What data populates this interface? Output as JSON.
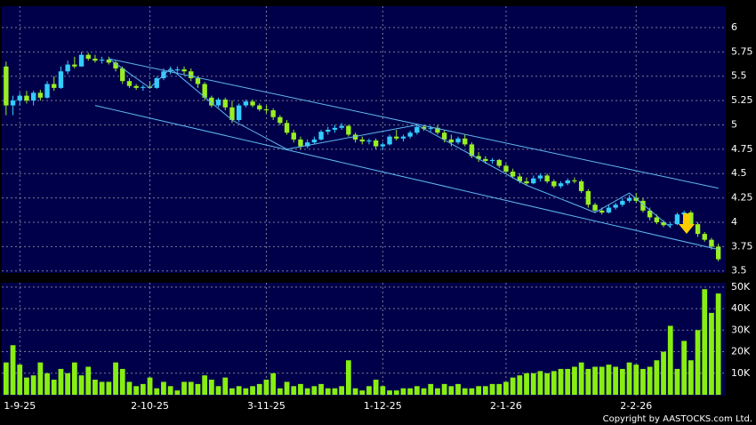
{
  "chart_data": [
    {
      "type": "candlestick",
      "categories": [
        null,
        null,
        "1-9-25",
        null,
        null,
        null,
        null,
        null,
        null,
        null,
        null,
        null,
        null,
        null,
        null,
        null,
        null,
        null,
        null,
        null,
        null,
        "2-10-25",
        null,
        null,
        null,
        null,
        null,
        null,
        null,
        null,
        null,
        null,
        null,
        null,
        null,
        null,
        null,
        null,
        "3-11-25",
        null,
        null,
        null,
        null,
        null,
        null,
        null,
        null,
        null,
        null,
        null,
        null,
        null,
        null,
        null,
        null,
        "1-12-25",
        null,
        null,
        null,
        null,
        null,
        null,
        null,
        null,
        null,
        null,
        null,
        null,
        null,
        null,
        null,
        null,
        null,
        "2-1-26",
        null,
        null,
        null,
        null,
        null,
        null,
        null,
        null,
        null,
        null,
        null,
        null,
        null,
        null,
        null,
        null,
        null,
        null,
        "2-2-26",
        null,
        null,
        null,
        null,
        null,
        null,
        null,
        null,
        null,
        null,
        null,
        null
      ],
      "open": [
        5.6,
        5.2,
        5.25,
        5.3,
        5.25,
        5.33,
        5.28,
        5.42,
        5.38,
        5.55,
        5.62,
        5.6,
        5.72,
        5.68,
        5.66,
        5.67,
        5.64,
        5.58,
        5.45,
        5.4,
        5.38,
        5.39,
        5.38,
        5.48,
        5.55,
        5.56,
        5.57,
        5.55,
        5.48,
        5.42,
        5.28,
        5.2,
        5.26,
        5.18,
        5.05,
        5.2,
        5.24,
        5.2,
        5.16,
        5.15,
        5.08,
        5.02,
        4.92,
        4.85,
        4.78,
        4.82,
        4.85,
        4.93,
        4.95,
        4.97,
        4.99,
        4.9,
        4.85,
        4.83,
        4.84,
        4.78,
        4.8,
        4.88,
        4.86,
        4.88,
        4.92,
        4.98,
        4.96,
        4.97,
        4.92,
        4.85,
        4.82,
        4.86,
        4.8,
        4.68,
        4.65,
        4.63,
        4.64,
        4.58,
        4.52,
        4.47,
        4.42,
        4.4,
        4.45,
        4.48,
        4.42,
        4.37,
        4.4,
        4.43,
        4.42,
        4.32,
        4.18,
        4.12,
        4.1,
        4.15,
        4.18,
        4.22,
        4.25,
        4.22,
        4.12,
        4.05,
        4.0,
        3.97,
        3.98,
        4.08,
        4.1,
        3.98,
        3.88,
        3.82,
        3.75
      ],
      "high": [
        5.65,
        5.3,
        5.33,
        5.35,
        5.35,
        5.36,
        5.45,
        5.5,
        5.6,
        5.66,
        5.7,
        5.75,
        5.74,
        5.72,
        5.7,
        5.7,
        5.66,
        5.6,
        5.48,
        5.42,
        5.41,
        5.45,
        5.5,
        5.58,
        5.6,
        5.6,
        5.6,
        5.58,
        5.5,
        5.44,
        5.3,
        5.28,
        5.28,
        5.25,
        5.22,
        5.26,
        5.26,
        5.22,
        5.2,
        5.17,
        5.1,
        5.05,
        4.95,
        4.88,
        4.85,
        4.88,
        4.95,
        4.98,
        5.0,
        5.02,
        5.0,
        4.92,
        4.88,
        4.86,
        4.86,
        4.82,
        4.9,
        4.95,
        4.9,
        4.94,
        5.0,
        5.0,
        4.99,
        5.0,
        4.95,
        4.9,
        4.88,
        4.9,
        4.82,
        4.72,
        4.68,
        4.66,
        4.65,
        4.6,
        4.55,
        4.5,
        4.46,
        4.48,
        4.5,
        4.5,
        4.44,
        4.42,
        4.45,
        4.46,
        4.44,
        4.34,
        4.2,
        4.15,
        4.18,
        4.2,
        4.25,
        4.28,
        4.3,
        4.25,
        4.15,
        4.08,
        4.02,
        4.0,
        4.1,
        4.12,
        4.12,
        4.0,
        3.9,
        3.84,
        3.78
      ],
      "low": [
        5.1,
        5.1,
        5.2,
        5.22,
        5.2,
        5.25,
        5.27,
        5.35,
        5.37,
        5.52,
        5.58,
        5.6,
        5.66,
        5.64,
        5.63,
        5.62,
        5.55,
        5.42,
        5.38,
        5.36,
        5.35,
        5.37,
        5.37,
        5.46,
        5.52,
        5.53,
        5.52,
        5.45,
        5.38,
        5.25,
        5.18,
        5.18,
        5.15,
        5.02,
        5.03,
        5.18,
        5.18,
        5.14,
        5.12,
        5.05,
        5.0,
        4.9,
        4.82,
        4.75,
        4.76,
        4.8,
        4.84,
        4.9,
        4.92,
        4.95,
        4.88,
        4.82,
        4.8,
        4.8,
        4.75,
        4.74,
        4.79,
        4.84,
        4.83,
        4.86,
        4.9,
        4.94,
        4.93,
        4.9,
        4.82,
        4.78,
        4.8,
        4.78,
        4.66,
        4.62,
        4.6,
        4.6,
        4.56,
        4.5,
        4.45,
        4.4,
        4.38,
        4.39,
        4.42,
        4.4,
        4.35,
        4.35,
        4.38,
        4.4,
        4.3,
        4.15,
        4.1,
        4.08,
        4.09,
        4.13,
        4.16,
        4.2,
        4.2,
        4.1,
        4.02,
        3.98,
        3.95,
        3.94,
        3.97,
        4.05,
        3.95,
        3.85,
        3.8,
        3.72,
        3.6
      ],
      "close": [
        5.2,
        5.25,
        5.3,
        5.25,
        5.33,
        5.28,
        5.42,
        5.38,
        5.55,
        5.62,
        5.6,
        5.72,
        5.68,
        5.66,
        5.67,
        5.64,
        5.58,
        5.45,
        5.4,
        5.38,
        5.39,
        5.38,
        5.48,
        5.55,
        5.56,
        5.57,
        5.55,
        5.48,
        5.42,
        5.28,
        5.2,
        5.26,
        5.18,
        5.05,
        5.2,
        5.24,
        5.2,
        5.16,
        5.15,
        5.08,
        5.02,
        4.92,
        4.85,
        4.78,
        4.82,
        4.85,
        4.93,
        4.95,
        4.97,
        4.99,
        4.9,
        4.85,
        4.83,
        4.84,
        4.78,
        4.8,
        4.88,
        4.86,
        4.88,
        4.92,
        4.98,
        4.96,
        4.97,
        4.92,
        4.85,
        4.82,
        4.86,
        4.8,
        4.68,
        4.65,
        4.63,
        4.64,
        4.58,
        4.52,
        4.47,
        4.42,
        4.4,
        4.45,
        4.48,
        4.42,
        4.37,
        4.4,
        4.43,
        4.42,
        4.32,
        4.18,
        4.12,
        4.1,
        4.15,
        4.18,
        4.22,
        4.25,
        4.22,
        4.12,
        4.05,
        4.0,
        3.97,
        3.98,
        4.08,
        4.1,
        3.98,
        3.88,
        3.82,
        3.75,
        3.62
      ],
      "up_color": "#33ccff",
      "down_color": "#99ee22",
      "ylim": [
        3.47,
        6.21
      ],
      "yticks": [
        3.5,
        3.75,
        4,
        4.25,
        4.5,
        4.75,
        5,
        5.25,
        5.5,
        5.75,
        6
      ],
      "grid": true,
      "trendline_color": "#5fb8f0",
      "trendlines": [
        {
          "x": [
            15,
            104
          ],
          "y": [
            5.68,
            4.35
          ]
        },
        {
          "x": [
            13,
            104
          ],
          "y": [
            5.2,
            3.72
          ]
        },
        {
          "x": [
            15,
            21,
            24,
            33,
            41,
            60,
            76,
            86,
            91,
            97
          ],
          "y": [
            5.68,
            5.38,
            5.58,
            5.05,
            4.75,
            5.0,
            4.38,
            4.1,
            4.3,
            3.95
          ]
        }
      ]
    },
    {
      "type": "bar",
      "values": [
        15000,
        23000,
        14000,
        8000,
        9000,
        15000,
        10000,
        7000,
        12000,
        10000,
        15000,
        9000,
        13000,
        7000,
        6000,
        6000,
        15000,
        12000,
        6000,
        4000,
        5000,
        8000,
        3000,
        6000,
        4000,
        2000,
        6000,
        6000,
        5000,
        9000,
        7000,
        4000,
        8000,
        3000,
        4000,
        3000,
        4000,
        5000,
        7000,
        10000,
        3000,
        6000,
        4000,
        5000,
        3000,
        4000,
        5000,
        3000,
        3000,
        4000,
        16000,
        3000,
        2000,
        4000,
        7000,
        4000,
        2000,
        2000,
        3000,
        3000,
        4000,
        3000,
        5000,
        3000,
        5000,
        4000,
        5000,
        3000,
        3000,
        4000,
        4000,
        5000,
        5000,
        6000,
        8000,
        9000,
        10000,
        10000,
        11000,
        10000,
        11000,
        12000,
        12000,
        13000,
        15000,
        12000,
        13000,
        13000,
        14000,
        13000,
        12000,
        15000,
        14000,
        12000,
        13000,
        16000,
        20000,
        32000,
        12000,
        25000,
        16000,
        30000,
        49000,
        38000,
        47000
      ],
      "color": "#88ee11",
      "ylim": [
        0,
        52000
      ],
      "yticks": [
        {
          "value": 10000,
          "label": "10K"
        },
        {
          "value": 20000,
          "label": "20K"
        },
        {
          "value": 30000,
          "label": "30K"
        },
        {
          "value": 40000,
          "label": "40K"
        },
        {
          "value": 50000,
          "label": "50K"
        }
      ],
      "grid": true
    }
  ],
  "footer": "Copyright by AASTOCKS.com Ltd."
}
